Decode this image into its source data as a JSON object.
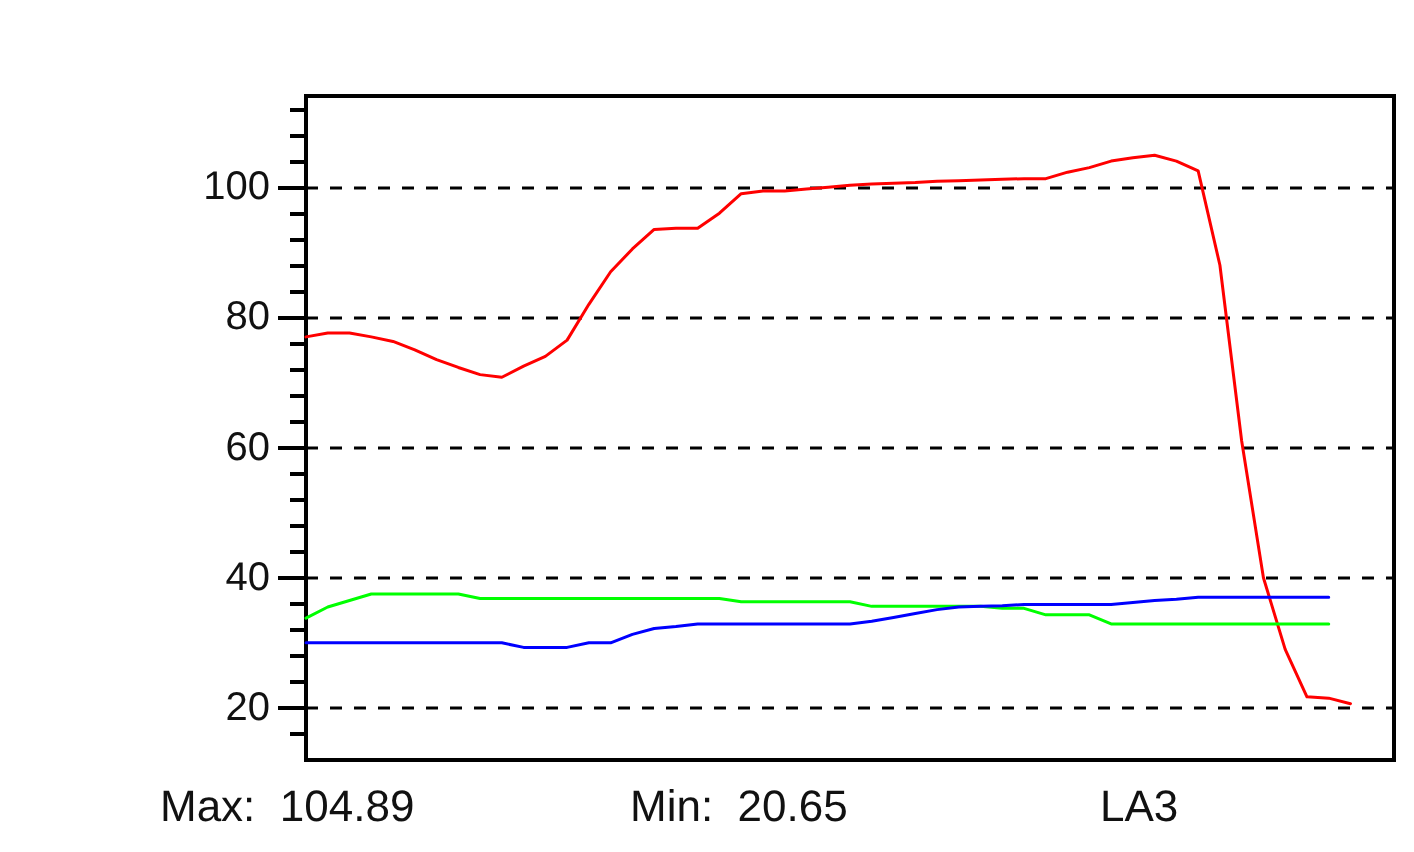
{
  "chart_data": {
    "type": "line",
    "categories": [
      null,
      null,
      null,
      null,
      null,
      null,
      null,
      null,
      null,
      null,
      null,
      null,
      null,
      null,
      null,
      null,
      null,
      null,
      null,
      null,
      null,
      null,
      null,
      null,
      null,
      null,
      null,
      null,
      null,
      null,
      null,
      null,
      null,
      null,
      null,
      null,
      null,
      null,
      null,
      null,
      null,
      null,
      null,
      null,
      null,
      null,
      null,
      null,
      null,
      null,
      null
    ],
    "series": [
      {
        "color": "#ff0000",
        "values": [
          77,
          77.6,
          77.6,
          77,
          76.3,
          75,
          73.5,
          72.3,
          71.2,
          70.8,
          72.5,
          74,
          76.5,
          82,
          87,
          90.5,
          93.5,
          93.7,
          93.7,
          96,
          99,
          99.4,
          99.4,
          99.7,
          100,
          100.3,
          100.5,
          100.6,
          100.7,
          100.9,
          101,
          101.1,
          101.2,
          101.3,
          101.3,
          102.3,
          103,
          104,
          104.5,
          104.89,
          104,
          102.5,
          88,
          61,
          40,
          29,
          21.7,
          21.5,
          20.65,
          null,
          null
        ]
      },
      {
        "color": "#00ff00",
        "values": [
          33.8,
          35.5,
          36.5,
          37.5,
          37.5,
          37.5,
          37.5,
          37.5,
          36.8,
          36.8,
          36.8,
          36.8,
          36.8,
          36.8,
          36.8,
          36.8,
          36.8,
          36.8,
          36.8,
          36.8,
          36.3,
          36.3,
          36.3,
          36.3,
          36.3,
          36.3,
          35.6,
          35.6,
          35.6,
          35.6,
          35.6,
          35.6,
          35.3,
          35.3,
          34.3,
          34.3,
          34.3,
          32.9,
          32.9,
          32.9,
          32.9,
          32.9,
          32.9,
          32.9,
          32.9,
          32.9,
          32.9,
          32.9,
          null,
          null,
          null
        ]
      },
      {
        "color": "#0000ff",
        "values": [
          30,
          30,
          30,
          30,
          30,
          30,
          30,
          30,
          30,
          30,
          29.3,
          29.3,
          29.3,
          30,
          30,
          31.3,
          32.2,
          32.5,
          32.9,
          32.9,
          32.9,
          32.9,
          32.9,
          32.9,
          32.9,
          32.9,
          33.3,
          33.9,
          34.5,
          35.1,
          35.5,
          35.6,
          35.7,
          35.9,
          35.9,
          35.9,
          35.9,
          35.9,
          36.2,
          36.5,
          36.7,
          37,
          37,
          37,
          37,
          37,
          37,
          37,
          null,
          null,
          null
        ]
      }
    ],
    "ylim": [
      12,
      114
    ],
    "yticks": [
      {
        "value": 16,
        "label": null
      },
      20,
      {
        "value": 24,
        "label": null
      },
      {
        "value": 28,
        "label": null
      },
      {
        "value": 32,
        "label": null
      },
      {
        "value": 36,
        "label": null
      },
      40,
      {
        "value": 44,
        "label": null
      },
      {
        "value": 48,
        "label": null
      },
      {
        "value": 52,
        "label": null
      },
      {
        "value": 56,
        "label": null
      },
      60,
      {
        "value": 64,
        "label": null
      },
      {
        "value": 68,
        "label": null
      },
      {
        "value": 72,
        "label": null
      },
      {
        "value": 76,
        "label": null
      },
      80,
      {
        "value": 84,
        "label": null
      },
      {
        "value": 88,
        "label": null
      },
      {
        "value": 92,
        "label": null
      },
      {
        "value": 96,
        "label": null
      },
      100,
      {
        "value": 104,
        "label": null
      },
      {
        "value": 108,
        "label": null
      },
      {
        "value": 112,
        "label": null
      }
    ],
    "grid": "y",
    "marker": "none",
    "line_style": "solid",
    "tick_labels": "y",
    "annotations": [
      "Max:  104.89",
      "Min:  20.65",
      "LA3"
    ]
  }
}
